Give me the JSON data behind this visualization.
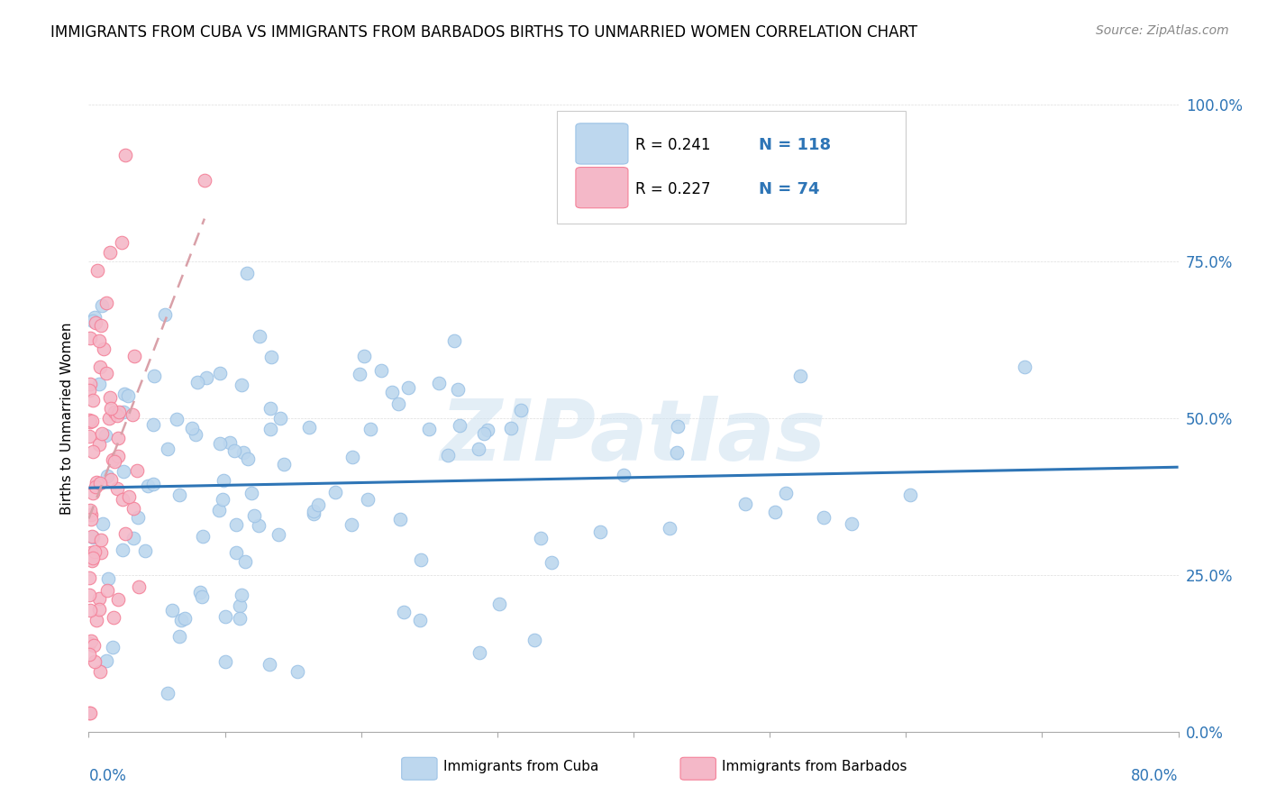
{
  "title": "IMMIGRANTS FROM CUBA VS IMMIGRANTS FROM BARBADOS BIRTHS TO UNMARRIED WOMEN CORRELATION CHART",
  "source": "Source: ZipAtlas.com",
  "ylabel": "Births to Unmarried Women",
  "ytick_values": [
    0,
    25,
    50,
    75,
    100
  ],
  "xlim": [
    0,
    80
  ],
  "ylim": [
    0,
    100
  ],
  "cuba_fill_color": "#bdd7ee",
  "cuba_edge_color": "#9dc3e6",
  "barbados_fill_color": "#f4b8c8",
  "barbados_edge_color": "#f48098",
  "trendline_cuba_color": "#2e75b6",
  "trendline_barbados_color": "#d9a0a8",
  "watermark_color": "#cce0f0",
  "watermark_text": "ZIPatlas",
  "legend_color_blue": "#2e75b6",
  "title_fontsize": 12,
  "source_fontsize": 10,
  "cuba_R": 0.241,
  "cuba_N": 118,
  "barbados_R": 0.227,
  "barbados_N": 74
}
